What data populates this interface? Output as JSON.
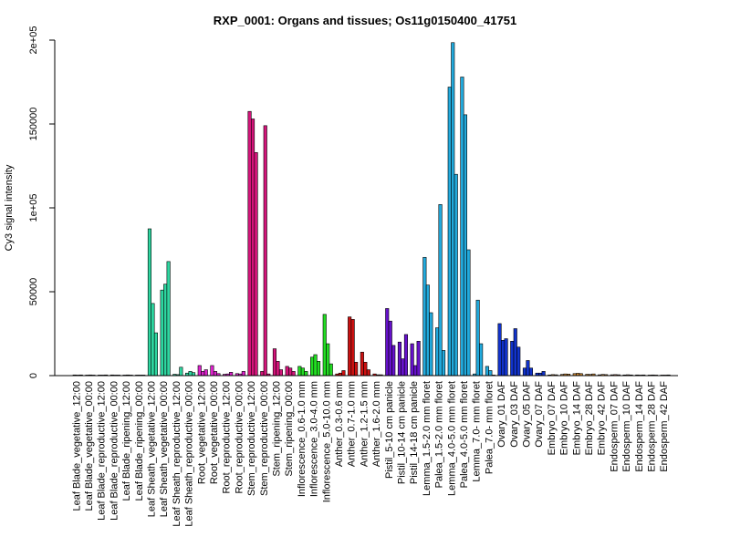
{
  "chart_data": {
    "type": "bar",
    "title": "RXP_0001: Organs and tissues; Os11g0150400_41751",
    "ylabel": "Cy3 signal intensity",
    "xlabel": "",
    "ylim": [
      0,
      200000
    ],
    "yticks": [
      {
        "value": 0,
        "label": "0"
      },
      {
        "value": 50000,
        "label": "50000"
      },
      {
        "value": 100000,
        "label": "1e+05"
      },
      {
        "value": 150000,
        "label": "150000"
      },
      {
        "value": 200000,
        "label": "2e+05"
      }
    ],
    "grid": false,
    "legend": "none",
    "groups": [
      {
        "label": "Leaf Blade_vegetative_12:00",
        "color": "#2a3a9a",
        "values": [
          400,
          300,
          400
        ]
      },
      {
        "label": "Leaf Blade_vegetative_00:00",
        "color": "#2a3a9a",
        "values": [
          300,
          400,
          300
        ]
      },
      {
        "label": "Leaf Blade_reproductive_12:00",
        "color": "#2a3a9a",
        "values": [
          300,
          300,
          400
        ]
      },
      {
        "label": "Leaf Blade_reproductive_00:00",
        "color": "#2a3a9a",
        "values": [
          400,
          300,
          300
        ]
      },
      {
        "label": "Leaf Blade_ripening_12:00",
        "color": "#2a3a9a",
        "values": [
          300,
          400,
          300
        ]
      },
      {
        "label": "Leaf Blade_ripening_00:00",
        "color": "#2a3a9a",
        "values": [
          300,
          300,
          300
        ]
      },
      {
        "label": "Leaf Sheath_vegetative_12:00",
        "color": "#2ed6a0",
        "values": [
          87500,
          43000,
          25500
        ]
      },
      {
        "label": "Leaf Sheath_vegetative_00:00",
        "color": "#2ed6a0",
        "values": [
          51000,
          54500,
          68000
        ]
      },
      {
        "label": "Leaf Sheath_reproductive_12:00",
        "color": "#2ed6a0",
        "values": [
          800,
          600,
          5000
        ]
      },
      {
        "label": "Leaf Sheath_reproductive_00:00",
        "color": "#2ed6a0",
        "values": [
          1500,
          2500,
          1800
        ]
      },
      {
        "label": "Root_vegetative_12:00",
        "color": "#dd22cc",
        "values": [
          6000,
          2500,
          3500
        ]
      },
      {
        "label": "Root_vegetative_00:00",
        "color": "#dd22cc",
        "values": [
          6000,
          2500,
          1200
        ]
      },
      {
        "label": "Root_reproductive_12:00",
        "color": "#dd22cc",
        "values": [
          800,
          1000,
          2000
        ]
      },
      {
        "label": "Root_reproductive_00:00",
        "color": "#dd22cc",
        "values": [
          1200,
          1000,
          2500
        ]
      },
      {
        "label": "Stem_reproductive_12:00",
        "color": "#d4147a",
        "values": [
          157500,
          153000,
          133000
        ]
      },
      {
        "label": "Stem_reproductive_00:00",
        "color": "#d4147a",
        "values": [
          2500,
          149000,
          1000
        ]
      },
      {
        "label": "Stem_ripening_12:00",
        "color": "#d4147a",
        "values": [
          16000,
          8500,
          3500
        ]
      },
      {
        "label": "Stem_ripening_00:00",
        "color": "#d4147a",
        "values": [
          5500,
          4500,
          2500
        ]
      },
      {
        "label": "Inflorescence_0.6-1.0 mm",
        "color": "#22dd22",
        "values": [
          5500,
          4500,
          2500
        ]
      },
      {
        "label": "Inflorescence_3.0-4.0 mm",
        "color": "#22dd22",
        "values": [
          11000,
          12500,
          8500
        ]
      },
      {
        "label": "Inflorescence_5.0-10.0 mm",
        "color": "#22dd22",
        "values": [
          36500,
          19000,
          7000
        ]
      },
      {
        "label": "Anther_0.3-0.6 mm",
        "color": "#cc1111",
        "values": [
          1000,
          1500,
          3000
        ]
      },
      {
        "label": "Anther_0.7-1.0 mm",
        "color": "#cc1111",
        "values": [
          35000,
          33500,
          8000
        ]
      },
      {
        "label": "Anther_1.2-1.5 mm",
        "color": "#cc1111",
        "values": [
          14000,
          8000,
          3500
        ]
      },
      {
        "label": "Anther_1.6-2.0 mm",
        "color": "#cc1111",
        "values": [
          1000,
          500,
          500
        ]
      },
      {
        "label": "Pistil_5-10 cm panicle",
        "color": "#6611cc",
        "values": [
          40000,
          32500,
          18000
        ]
      },
      {
        "label": "Pistil_10-14 cm panicle",
        "color": "#6611cc",
        "values": [
          20000,
          10000,
          24500
        ]
      },
      {
        "label": "Pistil_14-18 cm panicle",
        "color": "#6611cc",
        "values": [
          19000,
          6000,
          20500
        ]
      },
      {
        "label": "Lemma_1.5-2.0 mm floret",
        "color": "#22aadd",
        "values": [
          70500,
          54000,
          37500
        ]
      },
      {
        "label": "Palea_1.5-2.0 mm floret",
        "color": "#22aadd",
        "values": [
          28500,
          102000,
          15000
        ]
      },
      {
        "label": "Lemma_4.0-5.0 mm floret",
        "color": "#22aadd",
        "values": [
          172000,
          198500,
          120000
        ]
      },
      {
        "label": "Palea_4.0-5.0 mm floret",
        "color": "#22aadd",
        "values": [
          178000,
          155500,
          75000
        ]
      },
      {
        "label": "Lemma_7.0- mm floret",
        "color": "#22aadd",
        "values": [
          1000,
          45000,
          19000
        ]
      },
      {
        "label": "Palea_7.0- mm floret",
        "color": "#22aadd",
        "values": [
          5500,
          3000,
          0
        ]
      },
      {
        "label": "Ovary_01 DAF",
        "color": "#1133cc",
        "values": [
          31000,
          21000,
          22000
        ]
      },
      {
        "label": "Ovary_03 DAF",
        "color": "#1133cc",
        "values": [
          20500,
          28000,
          17000
        ]
      },
      {
        "label": "Ovary_05 DAF",
        "color": "#1133cc",
        "values": [
          4500,
          9000,
          4500
        ]
      },
      {
        "label": "Ovary_07 DAF",
        "color": "#1133cc",
        "values": [
          1500,
          1500,
          2500
        ]
      },
      {
        "label": "Embryo_07 DAF",
        "color": "#cc8833",
        "values": [
          400,
          600,
          500
        ]
      },
      {
        "label": "Embryo_10 DAF",
        "color": "#cc8833",
        "values": [
          700,
          1000,
          900
        ]
      },
      {
        "label": "Embryo_14 DAF",
        "color": "#cc8833",
        "values": [
          1200,
          1400,
          1200
        ]
      },
      {
        "label": "Embryo_28 DAF",
        "color": "#cc8833",
        "values": [
          800,
          700,
          1000
        ]
      },
      {
        "label": "Embryo_42 DAF",
        "color": "#cc8833",
        "values": [
          500,
          700,
          600
        ]
      },
      {
        "label": "Endosperm_07 DAF",
        "color": "#cc7755",
        "values": [
          500,
          600,
          500
        ]
      },
      {
        "label": "Endosperm_10 DAF",
        "color": "#cc7755",
        "values": [
          400,
          500,
          400
        ]
      },
      {
        "label": "Endosperm_14 DAF",
        "color": "#cc7755",
        "values": [
          400,
          300,
          400
        ]
      },
      {
        "label": "Endosperm_28 DAF",
        "color": "#cc7755",
        "values": [
          300,
          400,
          300
        ]
      },
      {
        "label": "Endosperm_42 DAF",
        "color": "#cc7755",
        "values": [
          300,
          300,
          400
        ]
      }
    ]
  }
}
